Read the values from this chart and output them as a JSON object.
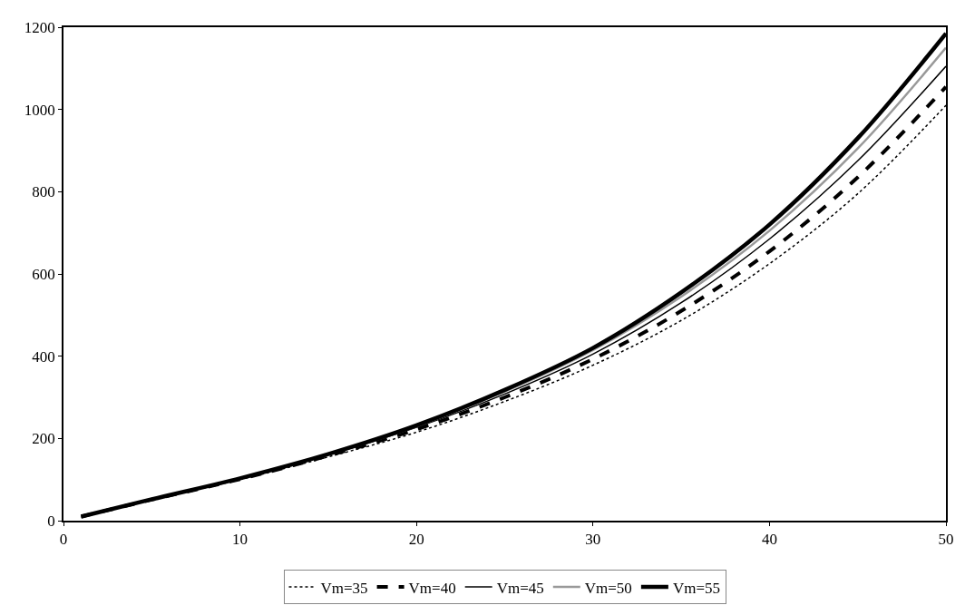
{
  "chart_data": {
    "type": "line",
    "x": [
      1,
      5,
      10,
      15,
      20,
      25,
      30,
      35,
      40,
      45,
      50
    ],
    "series": [
      {
        "name": "Vm=35",
        "color": "#000000",
        "line_style": "dotted",
        "values": [
          10,
          51,
          100,
          155,
          215,
          290,
          378,
          487,
          625,
          795,
          1010
        ]
      },
      {
        "name": "Vm=40",
        "color": "#000000",
        "line_style": "dashed",
        "values": [
          10,
          51,
          101,
          158,
          222,
          300,
          393,
          510,
          655,
          835,
          1055
        ]
      },
      {
        "name": "Vm=45",
        "color": "#000000",
        "line_style": "solid",
        "values": [
          10,
          52,
          102,
          160,
          227,
          308,
          405,
          530,
          685,
          875,
          1105
        ]
      },
      {
        "name": "Vm=50",
        "color": "#999999",
        "line_style": "solid",
        "values": [
          10,
          52,
          103,
          161,
          230,
          314,
          415,
          545,
          705,
          905,
          1150
        ]
      },
      {
        "name": "Vm=55",
        "color": "#000000",
        "line_style": "solid",
        "values": [
          10,
          52,
          103,
          162,
          232,
          318,
          420,
          555,
          720,
          930,
          1185
        ]
      }
    ],
    "xlim": [
      0,
      50
    ],
    "xticks": [
      0,
      10,
      20,
      30,
      40,
      50
    ],
    "ylim": [
      0,
      1200
    ],
    "yticks": [
      0,
      200,
      400,
      600,
      800,
      1000,
      1200
    ],
    "legend": "bottom",
    "marker": "none"
  }
}
